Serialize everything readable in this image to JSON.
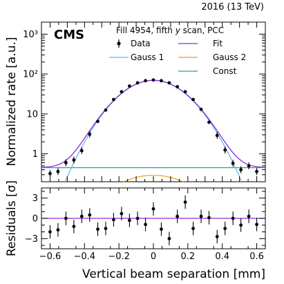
{
  "header": {
    "energy": "2016 (13 TeV)",
    "experiment": "CMS",
    "scan_info_prefix": "Fill 4954, fifth ",
    "scan_info_var": "y",
    "scan_info_suffix": " scan, PCC"
  },
  "chart_data": [
    {
      "type": "scatter",
      "panel": "main",
      "ylabel": "Normalized rate [a.u.]",
      "yscale": "log",
      "ylim": [
        0.2,
        2000
      ],
      "xlim": [
        -0.65,
        0.65
      ],
      "yticks": [
        {
          "v": 1,
          "label": "1"
        },
        {
          "v": 10,
          "label": "10"
        },
        {
          "v": 100,
          "label": "10²"
        },
        {
          "v": 1000,
          "label": "10³"
        }
      ],
      "legend": [
        "Data",
        "Fit",
        "Gauss 1",
        "Gauss 2",
        "Const"
      ],
      "colors": {
        "data": "#000000",
        "fit": "#8a2be2",
        "gauss1": "#5ab4e5",
        "gauss2": "#e8a020",
        "const": "#2aa198"
      },
      "data_points": {
        "x": [
          -0.6,
          -0.554,
          -0.508,
          -0.462,
          -0.416,
          -0.37,
          -0.323,
          -0.277,
          -0.231,
          -0.185,
          -0.139,
          -0.092,
          -0.046,
          0.0,
          0.046,
          0.092,
          0.139,
          0.185,
          0.231,
          0.277,
          0.323,
          0.37,
          0.416,
          0.462,
          0.508,
          0.554,
          0.6
        ],
        "y": [
          0.32,
          0.36,
          0.6,
          0.7,
          1.2,
          3.1,
          6.5,
          12.5,
          23,
          36,
          50,
          60,
          68,
          71,
          68,
          60,
          48,
          36,
          23,
          13,
          6.2,
          2.9,
          1.25,
          0.58,
          0.4,
          0.5,
          0.36
        ]
      },
      "fit_model": {
        "gauss1": {
          "amplitude": 69.0,
          "sigma": 0.15
        },
        "gauss2": {
          "amplitude": 0.29,
          "sigma": 0.2
        },
        "constant": 0.45
      }
    },
    {
      "type": "scatter",
      "panel": "residuals",
      "xlabel": "Vertical beam separation [mm]",
      "ylabel": "Residuals [σ]",
      "ylim": [
        -4.5,
        4.5
      ],
      "yticks": [
        {
          "v": -3,
          "label": "−3"
        },
        {
          "v": 0,
          "label": "0"
        },
        {
          "v": 3,
          "label": "3"
        }
      ],
      "xticks": [
        {
          "v": -0.6,
          "label": "−0.6"
        },
        {
          "v": -0.4,
          "label": "−0.4"
        },
        {
          "v": -0.2,
          "label": "−0.2"
        },
        {
          "v": 0,
          "label": "0"
        },
        {
          "v": 0.2,
          "label": "0.2"
        },
        {
          "v": 0.4,
          "label": "0.4"
        },
        {
          "v": 0.6,
          "label": "0.6"
        }
      ],
      "x": [
        -0.6,
        -0.554,
        -0.508,
        -0.462,
        -0.416,
        -0.37,
        -0.323,
        -0.277,
        -0.231,
        -0.185,
        -0.139,
        -0.092,
        -0.046,
        0.0,
        0.046,
        0.092,
        0.139,
        0.185,
        0.231,
        0.277,
        0.323,
        0.37,
        0.416,
        0.462,
        0.508,
        0.554,
        0.6
      ],
      "values": [
        -2.0,
        -1.7,
        0.0,
        -1.2,
        0.3,
        0.5,
        -1.6,
        -1.5,
        -0.2,
        0.7,
        -0.3,
        0.0,
        -0.9,
        1.4,
        -1.6,
        -3.0,
        0.3,
        2.4,
        -1.5,
        0.3,
        0.1,
        -2.7,
        -1.5,
        0.0,
        -1.0,
        0.3,
        -0.9
      ]
    }
  ]
}
